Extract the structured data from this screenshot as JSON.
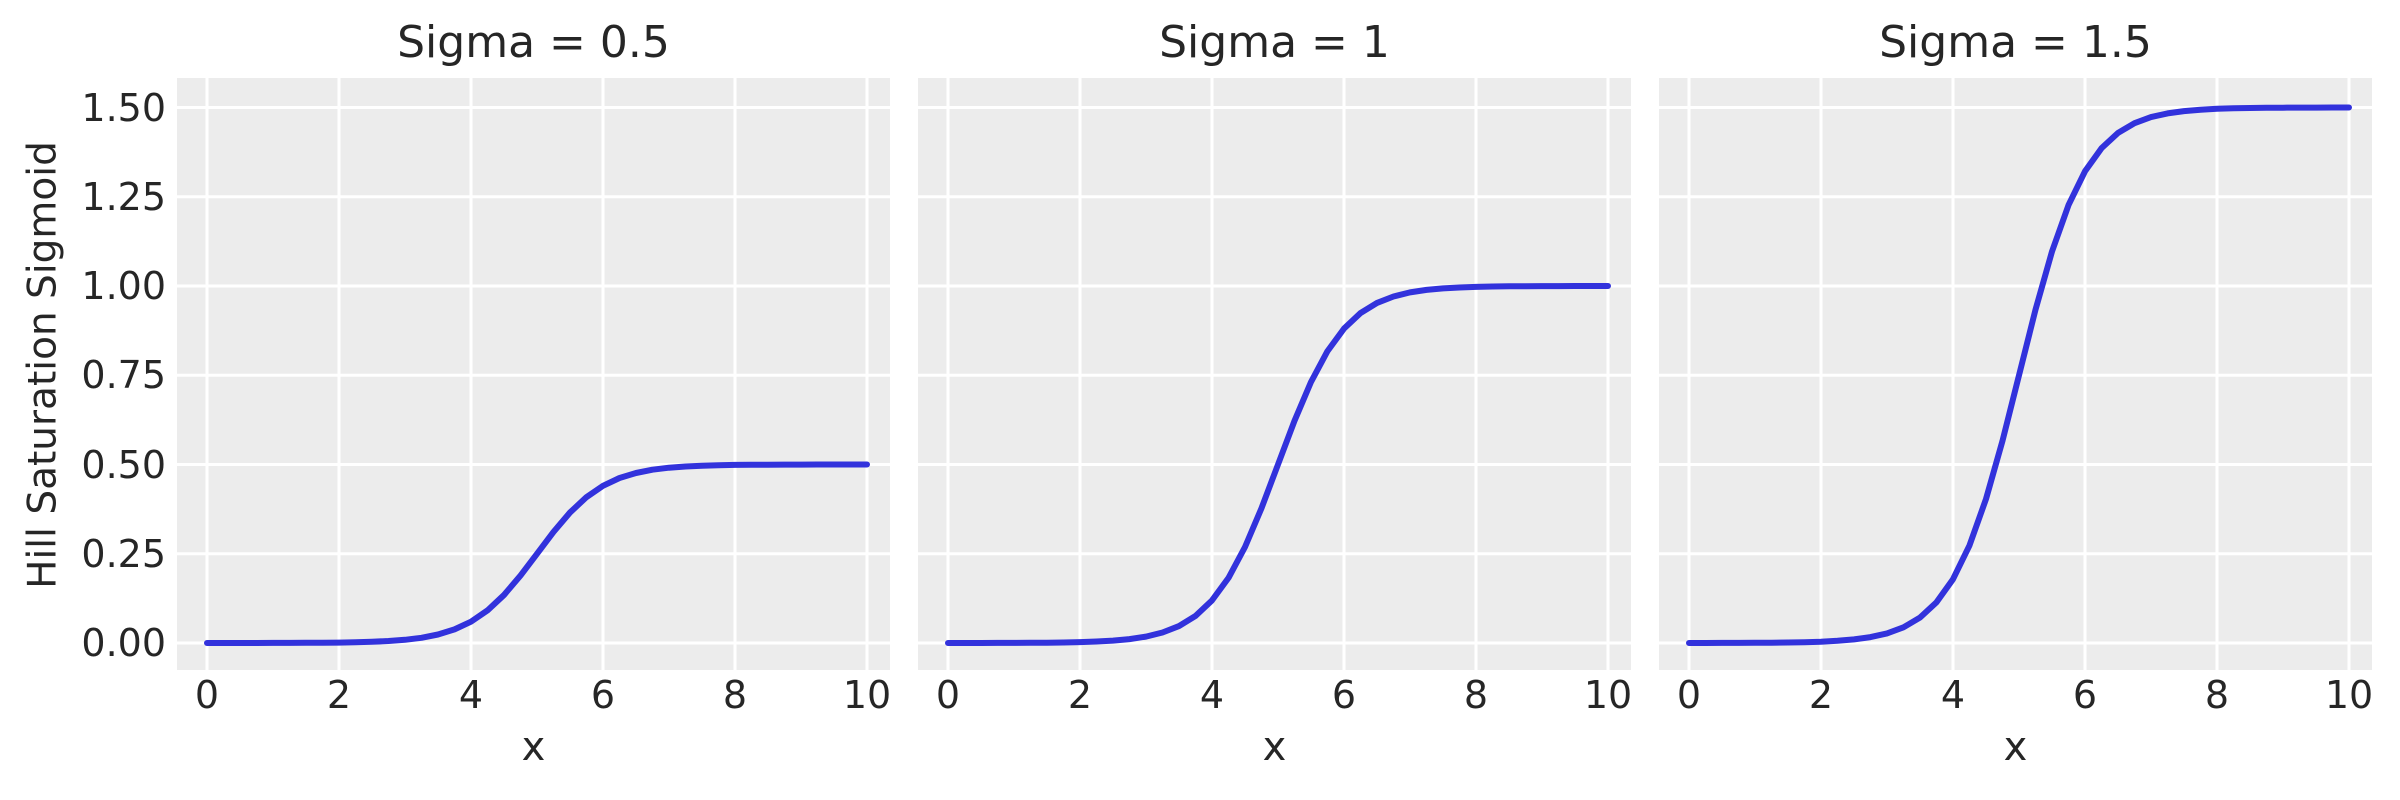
{
  "figure": {
    "ylabel": "Hill Saturation Sigmoid",
    "xlabel": "x",
    "colors": {
      "background": "#ffffff",
      "panel_background": "#ececec",
      "grid": "#ffffff",
      "text": "#262626",
      "line": "#3232dc"
    }
  },
  "chart_data": {
    "type": "line",
    "layout": {
      "subplot_arrangement": "1 row x 3 columns, shared y-axis tick labels on first subplot only",
      "grid": true,
      "legend": "none",
      "panel_style": "light gray background with white gridlines"
    },
    "xlabel": "x",
    "ylabel": "Hill Saturation Sigmoid",
    "xticks": [
      0,
      2,
      4,
      6,
      8,
      10
    ],
    "ytick_values": [
      0,
      0.25,
      0.5,
      0.75,
      1.0,
      1.25,
      1.5
    ],
    "ytick_labels": [
      "0.00",
      "0.25",
      "0.50",
      "0.75",
      "1.00",
      "1.25",
      "1.50"
    ],
    "xlim": [
      -0.45,
      10.35
    ],
    "ylim": [
      -0.08,
      1.58
    ],
    "x": [
      0,
      0.25,
      0.5,
      0.75,
      1,
      1.25,
      1.5,
      1.75,
      2,
      2.25,
      2.5,
      2.75,
      3,
      3.25,
      3.5,
      3.75,
      4,
      4.25,
      4.5,
      4.75,
      5,
      5.25,
      5.5,
      5.75,
      6,
      6.25,
      6.5,
      6.75,
      7,
      7.25,
      7.5,
      7.75,
      8,
      8.25,
      8.5,
      8.75,
      9,
      9.25,
      9.5,
      9.75,
      10
    ],
    "subplots": [
      {
        "title": "Sigma = 0.5",
        "sigma": 0.5,
        "y": [
          0.0,
          0.0,
          0.0001,
          0.0001,
          0.0002,
          0.0003,
          0.0005,
          0.0007,
          0.0012,
          0.002,
          0.0034,
          0.0055,
          0.009,
          0.0147,
          0.0237,
          0.038,
          0.0596,
          0.0912,
          0.1345,
          0.1888,
          0.25,
          0.3112,
          0.3655,
          0.4088,
          0.4404,
          0.4621,
          0.4763,
          0.4853,
          0.491,
          0.4945,
          0.4967,
          0.4979,
          0.4988,
          0.4992,
          0.4995,
          0.4997,
          0.4998,
          0.4999,
          0.4999,
          0.5,
          0.5
        ]
      },
      {
        "title": "Sigma = 1",
        "sigma": 1,
        "y": [
          0.0,
          0.0001,
          0.0001,
          0.0002,
          0.0003,
          0.0006,
          0.0009,
          0.0015,
          0.0025,
          0.0041,
          0.0067,
          0.011,
          0.018,
          0.0293,
          0.0474,
          0.0759,
          0.1192,
          0.1824,
          0.2689,
          0.3775,
          0.5,
          0.6225,
          0.7311,
          0.8176,
          0.8808,
          0.9241,
          0.9526,
          0.9707,
          0.982,
          0.989,
          0.9933,
          0.9959,
          0.9975,
          0.9985,
          0.9991,
          0.9994,
          0.9997,
          0.9998,
          0.9999,
          0.9999,
          1.0
        ]
      },
      {
        "title": "Sigma = 1.5",
        "sigma": 1.5,
        "y": [
          0.0001,
          0.0001,
          0.0002,
          0.0003,
          0.0005,
          0.0008,
          0.0014,
          0.0022,
          0.0037,
          0.0061,
          0.01,
          0.0164,
          0.0269,
          0.044,
          0.0712,
          0.1139,
          0.1788,
          0.2735,
          0.4034,
          0.5663,
          0.75,
          0.9337,
          1.0966,
          1.2265,
          1.3212,
          1.3861,
          1.4288,
          1.456,
          1.4731,
          1.4836,
          1.49,
          1.4939,
          1.4963,
          1.4978,
          1.4986,
          1.4992,
          1.4995,
          1.4997,
          1.4998,
          1.4999,
          1.5
        ]
      }
    ]
  }
}
